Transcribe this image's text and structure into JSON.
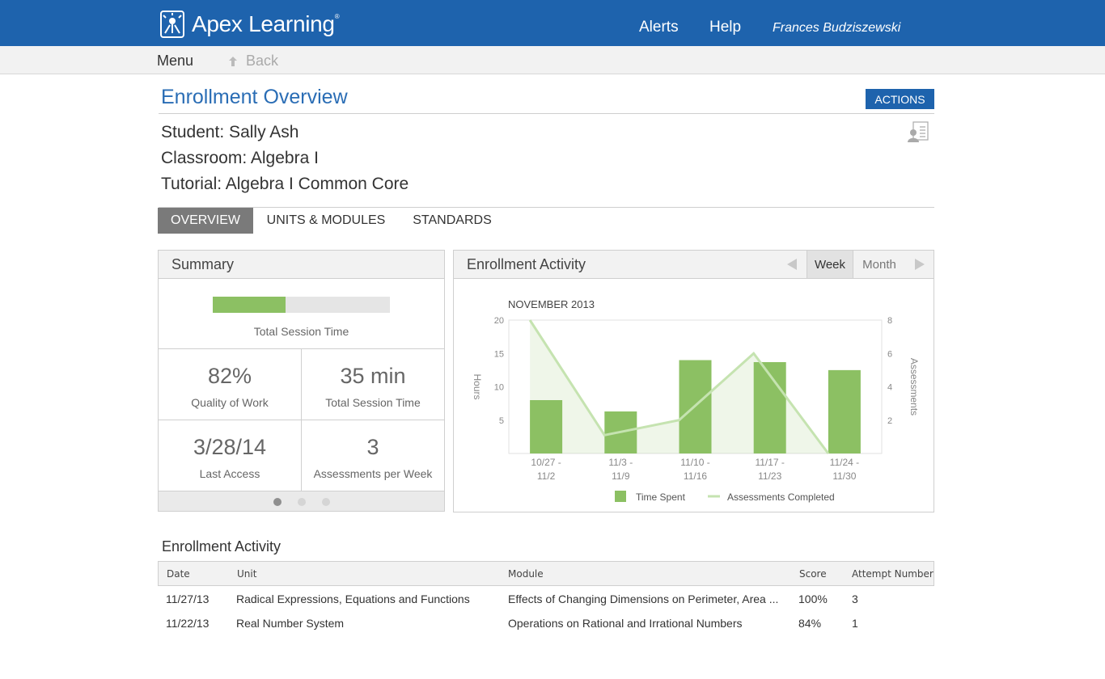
{
  "app": {
    "brand": "Apex Learning",
    "trademark": "®",
    "nav": {
      "alerts": "Alerts",
      "help": "Help"
    },
    "user_name": "Frances Budziszewski",
    "brand_color": "#1e63ad",
    "accent_green": "#8cc063"
  },
  "subbar": {
    "menu": "Menu",
    "back": "Back"
  },
  "header": {
    "title": "Enrollment Overview",
    "actions_label": "ACTIONS",
    "student": "Student: Sally Ash",
    "classroom": "Classroom: Algebra I",
    "tutorial": "Tutorial: Algebra I Common Core"
  },
  "tabs": [
    {
      "label": "OVERVIEW",
      "active": true
    },
    {
      "label": "UNITS & MODULES",
      "active": false
    },
    {
      "label": "STANDARDS",
      "active": false
    }
  ],
  "summary": {
    "title": "Summary",
    "session_bar_fraction": 0.41,
    "session_bar_label": "Total Session Time",
    "stats": [
      {
        "value": "82%",
        "label": "Quality of Work"
      },
      {
        "value": "35 min",
        "label": "Total Session Time"
      },
      {
        "value": "3/28/14",
        "label": "Last Access"
      },
      {
        "value": "3",
        "label": "Assessments per Week"
      }
    ],
    "page_count": 3,
    "page_active": 0
  },
  "activity_panel": {
    "title": "Enrollment Activity",
    "range_options": [
      "Week",
      "Month"
    ],
    "range_selected": "Week"
  },
  "chart_data": {
    "type": "bar",
    "title": "NOVEMBER 2013",
    "categories": [
      "10/27 -\n11/2",
      "11/3 -\n11/9",
      "11/10 -\n11/16",
      "11/17 -\n11/23",
      "11/24 -\n11/30"
    ],
    "series": [
      {
        "name": "Time Spent",
        "type": "bar",
        "axis": "left",
        "values": [
          8,
          6.3,
          14,
          13.7,
          12.5
        ]
      },
      {
        "name": "Assessments Completed",
        "type": "line",
        "axis": "right",
        "values": [
          8,
          1.1,
          2,
          6,
          0
        ]
      }
    ],
    "ylabel": "Hours",
    "y2label": "Assessments",
    "ylim": [
      0,
      20
    ],
    "y2lim": [
      0,
      8
    ],
    "yticks": [
      5,
      10,
      15,
      20
    ],
    "y2ticks": [
      2,
      4,
      6,
      8
    ],
    "legend": [
      "Time Spent",
      "Assessments Completed"
    ],
    "legend_position": "bottom"
  },
  "table": {
    "title": "Enrollment Activity",
    "columns": [
      "Date",
      "Unit",
      "Module",
      "Score",
      "Attempt Number"
    ],
    "rows": [
      [
        "11/27/13",
        "Radical Expressions, Equations and Functions",
        "Effects of Changing Dimensions on Perimeter, Area ...",
        "100%",
        "3"
      ],
      [
        "11/22/13",
        "Real Number System",
        "Operations on Rational and Irrational Numbers",
        "84%",
        "1"
      ]
    ]
  }
}
